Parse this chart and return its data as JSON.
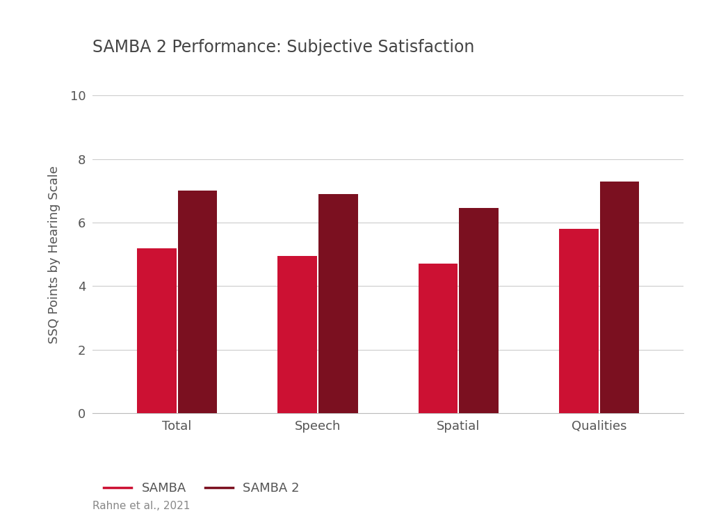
{
  "title": "SAMBA 2 Performance: Subjective Satisfaction",
  "categories": [
    "Total",
    "Speech",
    "Spatial",
    "Qualities"
  ],
  "samba_values": [
    5.2,
    4.95,
    4.7,
    5.8
  ],
  "samba2_values": [
    7.0,
    6.9,
    6.45,
    7.3
  ],
  "samba_color": "#CC1133",
  "samba2_color": "#7B1020",
  "ylabel": "SSQ Points by Hearing Scale",
  "ylim": [
    0,
    10
  ],
  "yticks": [
    0,
    2,
    4,
    6,
    8,
    10
  ],
  "legend_labels": [
    "SAMBA",
    "SAMBA 2"
  ],
  "citation": "Rahne et al., 2021",
  "bar_width": 0.28,
  "background_color": "#FFFFFF",
  "title_fontsize": 17,
  "axis_fontsize": 13,
  "tick_fontsize": 13,
  "legend_fontsize": 13,
  "citation_fontsize": 11,
  "title_color": "#444444",
  "tick_color": "#555555",
  "citation_color": "#888888",
  "grid_color": "#CCCCCC",
  "spine_color": "#BBBBBB"
}
